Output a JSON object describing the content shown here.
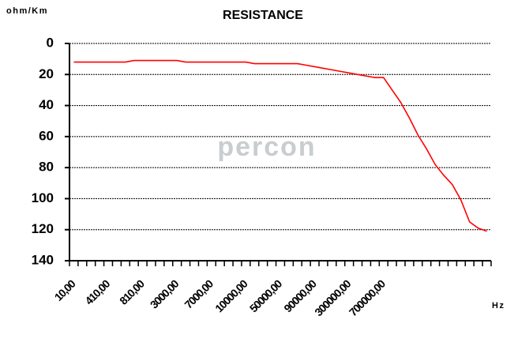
{
  "chart_data": {
    "type": "line",
    "title": "RESISTANCE",
    "y_label": "ohm/Km",
    "x_label": "Hz",
    "watermark": "percon",
    "categories": [
      "10,00",
      null,
      null,
      null,
      "410,00",
      null,
      null,
      null,
      "810,00",
      null,
      null,
      null,
      "3000,00",
      null,
      null,
      null,
      "7000,00",
      null,
      null,
      null,
      "10000,00",
      null,
      null,
      null,
      "50000,00",
      null,
      null,
      null,
      "90000,00",
      null,
      null,
      null,
      "300000,00",
      null,
      null,
      null,
      "700000,00",
      null,
      null,
      null,
      null,
      null,
      null,
      null,
      null,
      null,
      null,
      null,
      null
    ],
    "series": [
      {
        "name": "RESISTANCE",
        "color": "#ff0000",
        "values": [
          12,
          12,
          12,
          12,
          12,
          12,
          12,
          11,
          11,
          11,
          11,
          11,
          11,
          12,
          12,
          12,
          12,
          12,
          12,
          12,
          12,
          13,
          13,
          13,
          13,
          13,
          13,
          14,
          15,
          16,
          17,
          18,
          19,
          20,
          21,
          22,
          22,
          30,
          38,
          48,
          59,
          68,
          78,
          85,
          91,
          101,
          115,
          119,
          121
        ]
      }
    ],
    "ylim": [
      0,
      140
    ],
    "yticks": [
      0,
      20,
      40,
      60,
      80,
      100,
      120,
      140
    ],
    "y_inverted": true,
    "grid": true
  }
}
